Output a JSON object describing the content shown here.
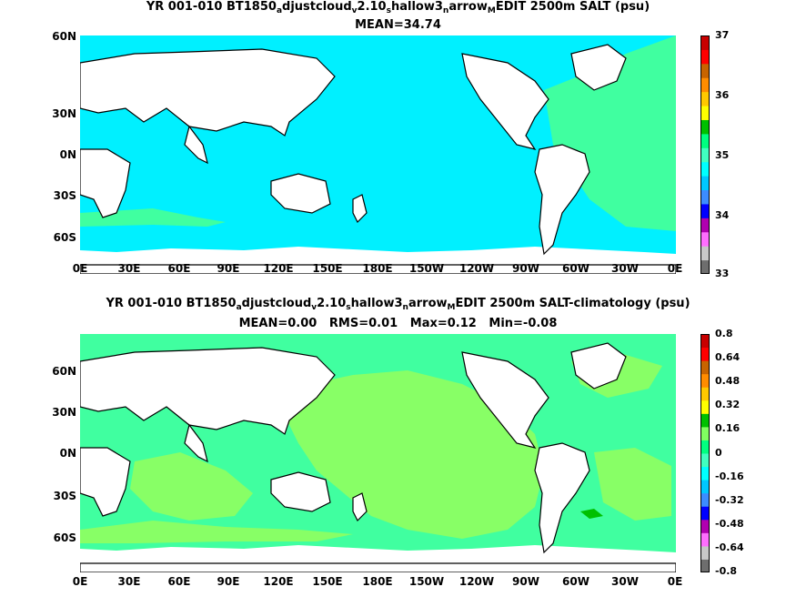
{
  "panels": [
    {
      "title_parts": [
        "YR 001-010 BT1850",
        "a",
        "djustcloud",
        "v",
        "2.10",
        "s",
        "hallow3",
        "n",
        "arrow",
        "M",
        "EDIT 2500m SALT (psu)"
      ],
      "stats": "MEAN=34.74",
      "lat_labels": [
        "60N",
        "30N",
        "0N",
        "30S",
        "60S"
      ],
      "lon_labels": [
        "0E",
        "30E",
        "60E",
        "90E",
        "120E",
        "150E",
        "180E",
        "150W",
        "120W",
        "90W",
        "60W",
        "30W",
        "0E"
      ],
      "colorbar": {
        "labels": [
          "37",
          "36",
          "35",
          "34",
          "33"
        ],
        "colors": [
          "#6e6e6e",
          "#c8c8c8",
          "#ff6eff",
          "#b000b0",
          "#0000ff",
          "#3c8cff",
          "#00c8ff",
          "#00ffff",
          "#40ffc0",
          "#00ff80",
          "#00c000",
          "#ffff00",
          "#ffc800",
          "#ff8c00",
          "#c86400",
          "#ff0000",
          "#c80000"
        ]
      }
    },
    {
      "title_parts": [
        "YR 001-010 BT1850",
        "a",
        "djustcloud",
        "v",
        "2.10",
        "s",
        "hallow3",
        "n",
        "arrow",
        "M",
        "EDIT 2500m SALT-climatology (psu)"
      ],
      "stats": "MEAN=0.00   RMS=0.01   Max=0.12   Min=-0.08",
      "lat_labels": [
        "60N",
        "30N",
        "0N",
        "30S",
        "60S"
      ],
      "lon_labels": [
        "0E",
        "30E",
        "60E",
        "90E",
        "120E",
        "150E",
        "180E",
        "150W",
        "120W",
        "90W",
        "60W",
        "30W",
        "0E"
      ],
      "colorbar": {
        "labels": [
          "0.8",
          "0.64",
          "0.48",
          "0.32",
          "0.16",
          "0",
          "-0.16",
          "-0.32",
          "-0.48",
          "-0.64",
          "-0.8"
        ],
        "colors": [
          "#6e6e6e",
          "#c8c8c8",
          "#ff6eff",
          "#b000b0",
          "#0000ff",
          "#3c8cff",
          "#00c8ff",
          "#00ffff",
          "#40ffc0",
          "#00ff80",
          "#80ff60",
          "#00c000",
          "#ffff00",
          "#ffc800",
          "#ff8c00",
          "#c86400",
          "#ff0000",
          "#c80000"
        ]
      }
    }
  ],
  "colors": {
    "ocean_top": "#00f0ff",
    "atlantic_top": "#40ffa0",
    "ocean_low_diff": "#40ffa0",
    "ocean_high_diff": "#88ff66",
    "land": "#ffffff",
    "coast": "#000000"
  }
}
